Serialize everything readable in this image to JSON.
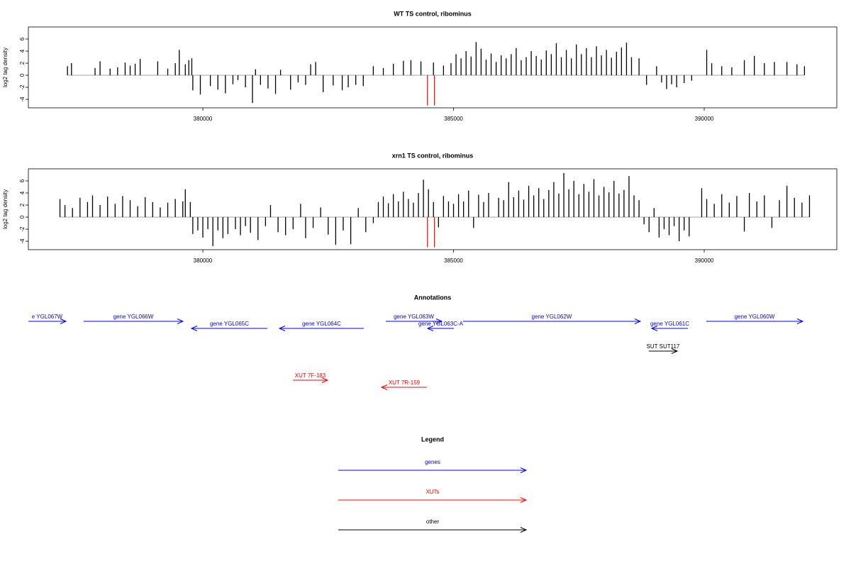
{
  "chart_data": [
    {
      "type": "bar",
      "title": "WT TS control, ribominus",
      "ylabel": "log2 tag density",
      "color": "#000000",
      "xlim": [
        376520,
        392645
      ],
      "ylim": [
        -5.4,
        8
      ],
      "xticks": [
        380000,
        385000,
        390000
      ],
      "yticks": [
        -4,
        -2,
        0,
        2,
        4,
        6
      ],
      "x": [
        377300,
        377380,
        377850,
        377950,
        378150,
        378300,
        378450,
        378550,
        378650,
        378750,
        379100,
        379300,
        379450,
        379530,
        379650,
        379720,
        379780,
        379800,
        379950,
        380150,
        380300,
        380450,
        380600,
        380700,
        380850,
        380990,
        381050,
        381150,
        381300,
        381450,
        381550,
        381750,
        381900,
        382050,
        382150,
        382250,
        382400,
        382600,
        382780,
        382900,
        383050,
        383200,
        383400,
        383600,
        383800,
        384000,
        384150,
        384350,
        384600,
        384800,
        384950,
        385050,
        385150,
        385250,
        385350,
        385450,
        385550,
        385650,
        385750,
        385850,
        385950,
        386050,
        386150,
        386250,
        386350,
        386450,
        386550,
        386650,
        386750,
        386850,
        386950,
        387050,
        387150,
        387250,
        387350,
        387450,
        387550,
        387650,
        387750,
        387850,
        387950,
        388050,
        388150,
        388250,
        388350,
        388450,
        388550,
        388700,
        388850,
        389050,
        389150,
        389250,
        389350,
        389450,
        389600,
        389750,
        390050,
        390150,
        390350,
        390550,
        390800,
        391000,
        391200,
        391400,
        391650,
        391850,
        392000
      ],
      "values": [
        1.5,
        2,
        1.2,
        2.3,
        1.1,
        1.3,
        2.1,
        1.6,
        1.9,
        2.7,
        2.3,
        1.1,
        2,
        4.2,
        1.8,
        2.5,
        2.8,
        -2.5,
        -3.2,
        -1.8,
        -2.4,
        -3,
        -1.5,
        -0.8,
        -2,
        -4.6,
        1,
        -1.6,
        -2.2,
        -3.1,
        0.9,
        -2.4,
        -1.2,
        -1.6,
        1.8,
        2.2,
        -2.8,
        -1.7,
        -2.5,
        -2,
        -1.6,
        -1.8,
        1.5,
        1.2,
        1.9,
        2.4,
        2.5,
        2.3,
        2.1,
        1.6,
        2,
        3.5,
        2.8,
        4,
        3.1,
        5.5,
        4.4,
        2.6,
        3.6,
        2.2,
        3.3,
        2.8,
        3.5,
        4.5,
        2.5,
        3,
        4,
        3.2,
        2.6,
        4.1,
        3.5,
        5.3,
        3,
        4.2,
        2.8,
        5.1,
        3.5,
        4.5,
        3,
        4.8,
        3.3,
        4.2,
        2.9,
        3.9,
        4.6,
        5.4,
        3,
        2.8,
        -1.6,
        1.5,
        -1.2,
        -2.3,
        -1.5,
        -2,
        -1.3,
        -0.9,
        4.2,
        2,
        1.5,
        1.3,
        2.5,
        3.2,
        2,
        2.2,
        2.2,
        1.8,
        1.5
      ],
      "highlight": {
        "color": "#ff0000",
        "x": [
          384480,
          384620
        ],
        "values": [
          -5,
          -5
        ]
      }
    },
    {
      "type": "bar",
      "title": "xrn1 TS control, ribominus",
      "ylabel": "log2 tag density",
      "color": "#000000",
      "xlim": [
        376520,
        392645
      ],
      "ylim": [
        -5.4,
        8
      ],
      "xticks": [
        380000,
        385000,
        390000
      ],
      "yticks": [
        -4,
        -2,
        0,
        2,
        4,
        6
      ],
      "x": [
        377150,
        377250,
        377400,
        377550,
        377700,
        377800,
        377950,
        378100,
        378250,
        378400,
        378550,
        378700,
        378850,
        379000,
        379150,
        379300,
        379450,
        379600,
        379650,
        379750,
        379800,
        379900,
        380000,
        380100,
        380200,
        380300,
        380400,
        380500,
        380650,
        380750,
        380850,
        380950,
        381100,
        381250,
        381350,
        381500,
        381650,
        381800,
        381950,
        382050,
        382200,
        382350,
        382500,
        382650,
        382800,
        382950,
        383100,
        383250,
        383400,
        383500,
        383600,
        383700,
        383800,
        383900,
        384000,
        384100,
        384200,
        384300,
        384400,
        384500,
        384600,
        384700,
        384800,
        384900,
        385000,
        385100,
        385200,
        385300,
        385400,
        385500,
        385600,
        385700,
        385900,
        386000,
        386100,
        386200,
        386300,
        386400,
        386500,
        386600,
        386700,
        386800,
        386900,
        387000,
        387100,
        387200,
        387300,
        387400,
        387500,
        387600,
        387700,
        387800,
        387900,
        388000,
        388100,
        388200,
        388300,
        388400,
        388500,
        388600,
        388700,
        388800,
        388900,
        389000,
        389100,
        389200,
        389300,
        389400,
        389500,
        389600,
        389700,
        389950,
        390050,
        390200,
        390350,
        390500,
        390650,
        390800,
        390900,
        391050,
        391200,
        391350,
        391500,
        391650,
        391800,
        391950,
        392100
      ],
      "values": [
        3,
        2,
        1.5,
        3.2,
        2.5,
        3.6,
        2,
        3.4,
        2.2,
        3.5,
        2.8,
        1.8,
        3.3,
        2.5,
        1.6,
        2.4,
        3,
        2.6,
        4.6,
        2.5,
        -2.8,
        -2.2,
        -3.4,
        -2,
        -4.8,
        -2.2,
        -3.5,
        -2.8,
        -2,
        -3,
        -1.5,
        -2.6,
        -3.8,
        -1.5,
        2,
        -2.5,
        -3,
        -2,
        2.2,
        -3.5,
        -1.8,
        1.6,
        -2.9,
        -4.6,
        -2.2,
        -4.5,
        1.5,
        -2.5,
        -1,
        2.5,
        3.4,
        2.3,
        3.8,
        2.6,
        4.2,
        3,
        2.4,
        4,
        6.2,
        4.6,
        2.5,
        -1.7,
        3.5,
        2.6,
        2.2,
        3.8,
        2.6,
        4.4,
        -1.8,
        3.7,
        2.5,
        4,
        3.2,
        2.8,
        5.8,
        3.3,
        4.4,
        2.9,
        5.2,
        3.6,
        4.8,
        3,
        4.5,
        5.8,
        3.9,
        7.3,
        4.6,
        6,
        3.8,
        5.5,
        4.2,
        6.3,
        3.6,
        5,
        4.1,
        6,
        3.9,
        4.5,
        6.8,
        3.6,
        2.8,
        -1.2,
        -2.5,
        1.5,
        -3.4,
        -2,
        -3,
        -1.5,
        -4,
        -2.2,
        -3.2,
        4.8,
        3,
        2.2,
        3.8,
        2.4,
        3.5,
        -2.4,
        4,
        2.6,
        3.6,
        -1.8,
        2.8,
        5.2,
        3.2,
        2.4,
        3.6
      ],
      "highlight": {
        "color": "#ff0000",
        "x": [
          384480,
          384620
        ],
        "values": [
          -5,
          -5
        ]
      }
    }
  ],
  "annotations": {
    "title": "Annotations",
    "items": [
      {
        "label": "e YGL067W",
        "category": "genes",
        "strand": "+",
        "start": 376520,
        "end": 377270
      },
      {
        "label": "gene YGL066W",
        "category": "genes",
        "strand": "+",
        "start": 377623,
        "end": 379604
      },
      {
        "label": "gene YGL065C",
        "category": "genes",
        "strand": "-",
        "start": 379773,
        "end": 381287
      },
      {
        "label": "gene YGL064C",
        "category": "genes",
        "strand": "-",
        "start": 381527,
        "end": 383210
      },
      {
        "label": "gene YGL063W",
        "category": "genes",
        "strand": "+",
        "start": 383649,
        "end": 384766
      },
      {
        "label": "gene YGL063C-A",
        "category": "genes",
        "strand": "-",
        "start": 384483,
        "end": 385007
      },
      {
        "label": "gene YGL062W",
        "category": "genes",
        "strand": "+",
        "start": 385190,
        "end": 388726
      },
      {
        "label": "gene YGL061C",
        "category": "genes",
        "strand": "-",
        "start": 388953,
        "end": 389675
      },
      {
        "label": "gene YGL060W",
        "category": "genes",
        "strand": "+",
        "start": 390042,
        "end": 391966
      },
      {
        "label": "SUT SUT117",
        "category": "other",
        "strand": "+",
        "start": 388896,
        "end": 389462
      },
      {
        "label": "XUT 7F-183",
        "category": "XUTs",
        "strand": "+",
        "start": 381796,
        "end": 382489
      },
      {
        "label": "XUT 7R-159",
        "category": "XUTs",
        "strand": "-",
        "start": 383564,
        "end": 384469
      }
    ]
  },
  "legend": {
    "title": "Legend",
    "items": [
      {
        "label": "genes",
        "color": "#0000ff"
      },
      {
        "label": "XUTs",
        "color": "#ff0000"
      },
      {
        "label": "other",
        "color": "#000000"
      }
    ]
  }
}
